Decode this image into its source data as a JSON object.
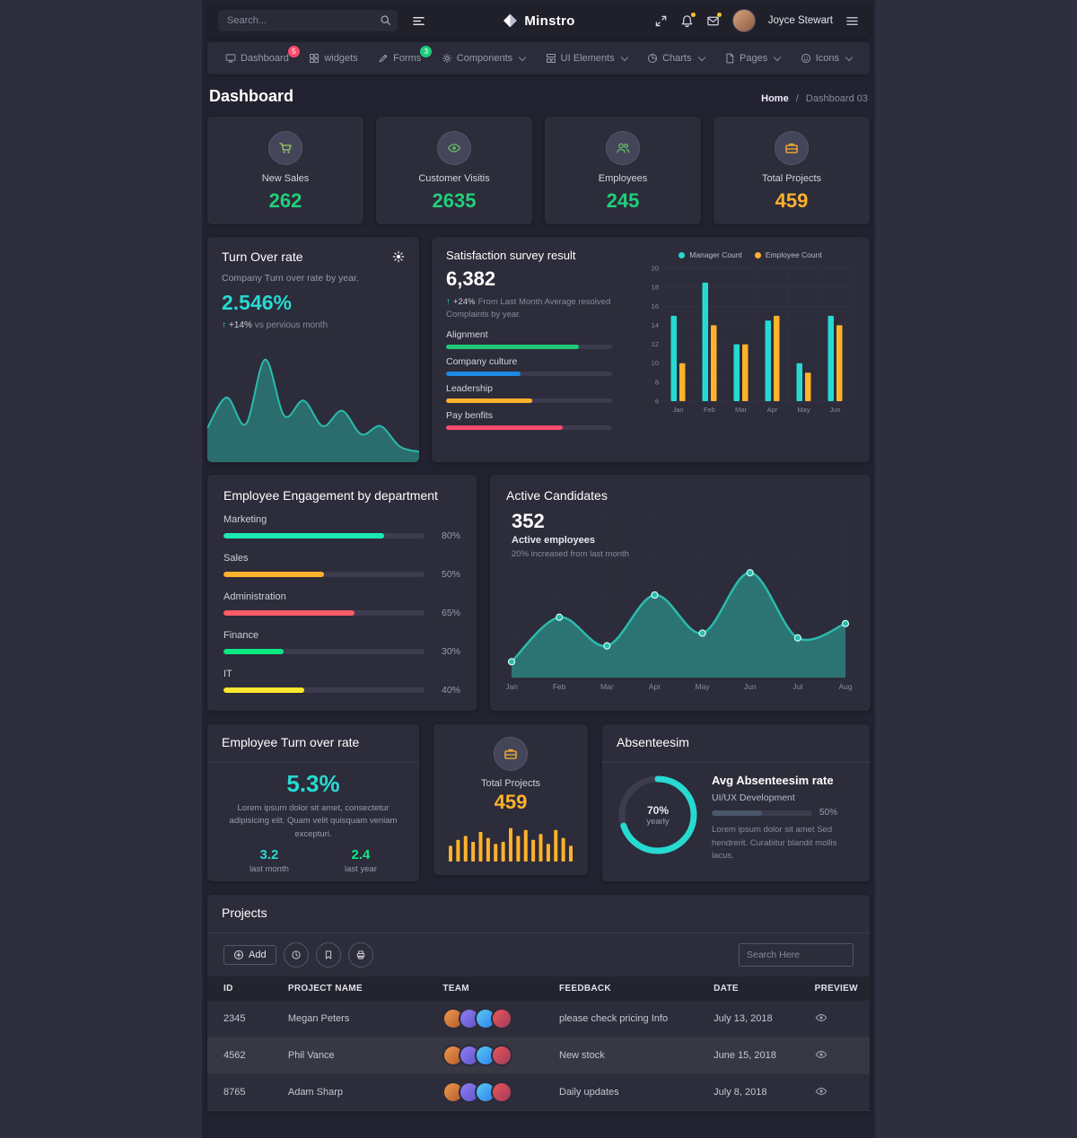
{
  "topbar": {
    "search_placeholder": "Search...",
    "brand": "Minstro",
    "user_name": "Joyce Stewart",
    "icons": [
      "search-icon",
      "list-icon",
      "expand-icon",
      "bell-icon",
      "mail-icon",
      "menu-icon"
    ]
  },
  "nav": {
    "items": [
      {
        "id": "dashboard",
        "label": "Dashboard",
        "icon": "monitor-icon",
        "badge": "5",
        "badge_color": "#fc4b6c",
        "dropdown": false,
        "active": true
      },
      {
        "id": "widgets",
        "label": "widgets",
        "icon": "widgets-icon",
        "dropdown": false
      },
      {
        "id": "forms",
        "label": "Forms",
        "icon": "forms-icon",
        "badge": "3",
        "badge_color": "#1ecb7b",
        "dropdown": false
      },
      {
        "id": "components",
        "label": "Components",
        "icon": "components-icon",
        "dropdown": true
      },
      {
        "id": "ui-elements",
        "label": "UI Elements",
        "icon": "ui-elements-icon",
        "dropdown": true
      },
      {
        "id": "charts",
        "label": "Charts",
        "icon": "charts-icon",
        "dropdown": true
      },
      {
        "id": "pages",
        "label": "Pages",
        "icon": "pages-icon",
        "dropdown": true
      },
      {
        "id": "icons",
        "label": "Icons",
        "icon": "icons-icon",
        "dropdown": true
      }
    ]
  },
  "page": {
    "title": "Dashboard",
    "breadcrumb_home": "Home",
    "breadcrumb_sep": "/",
    "breadcrumb_current": "Dashboard 03"
  },
  "stats": [
    {
      "id": "new-sales",
      "label": "New Sales",
      "value": "262",
      "value_color": "#21d07a",
      "icon": "cart-icon",
      "icon_color": "#9ccc65"
    },
    {
      "id": "customer-visits",
      "label": "Customer Visitis",
      "value": "2635",
      "value_color": "#21d07a",
      "icon": "eye-icon",
      "icon_color": "#66bb6a"
    },
    {
      "id": "employees",
      "label": "Employees",
      "value": "245",
      "value_color": "#21d07a",
      "icon": "people-icon",
      "icon_color": "#66bb6a"
    },
    {
      "id": "total-projects",
      "label": "Total Projects",
      "value": "459",
      "value_color": "#ffb22b",
      "icon": "briefcase-icon",
      "icon_color": "#ffb22b"
    }
  ],
  "turnover": {
    "title": "Turn Over rate",
    "subtitle": "Company Turn over rate by year.",
    "value": "2.546%",
    "delta": "+14%",
    "delta_note": "vs pervious month",
    "chart": {
      "type": "area",
      "color": "#2bbbad",
      "values": [
        28,
        58,
        32,
        95,
        40,
        55,
        30,
        45,
        22,
        30,
        10,
        5
      ]
    }
  },
  "satisfaction": {
    "title": "Satisfaction survey result",
    "value": "6,382",
    "delta": "+24%",
    "note": "From Last Month Average resolved Complaints by year.",
    "progress": [
      {
        "label": "Alignment",
        "pct": 80,
        "color": "#21c87a"
      },
      {
        "label": "Company culture",
        "pct": 45,
        "color": "#1e88e5"
      },
      {
        "label": "Leadership",
        "pct": 52,
        "color": "#ffb22b"
      },
      {
        "label": "Pay benfits",
        "pct": 70,
        "color": "#fc4b6c"
      }
    ],
    "chart": {
      "type": "bar",
      "categories": [
        "Jan",
        "Feb",
        "Mar",
        "Apr",
        "May",
        "Jun"
      ],
      "series": [
        {
          "name": "Manager Count",
          "color": "#26dad2",
          "values": [
            15,
            18.5,
            12,
            14.5,
            10,
            15
          ]
        },
        {
          "name": "Employee Count",
          "color": "#ffb22b",
          "values": [
            10,
            14,
            12,
            15,
            9,
            14
          ]
        }
      ],
      "y_ticks": [
        20,
        18,
        16,
        14,
        12,
        10,
        8,
        6
      ],
      "y_min": 6,
      "y_max": 20
    }
  },
  "engagement": {
    "title": "Employee Engagement by department",
    "rows": [
      {
        "label": "Marketing",
        "pct": 80,
        "pct_label": "80%",
        "color": "#1de9b6"
      },
      {
        "label": "Sales",
        "pct": 50,
        "pct_label": "50%",
        "color": "#ffb22b"
      },
      {
        "label": "Administration",
        "pct": 65,
        "pct_label": "65%",
        "color": "#fc5c65"
      },
      {
        "label": "Finance",
        "pct": 30,
        "pct_label": "30%",
        "color": "#0be881"
      },
      {
        "label": "IT",
        "pct": 40,
        "pct_label": "40%",
        "color": "#fde62f"
      }
    ]
  },
  "candidates": {
    "title": "Active Candidates",
    "value": "352",
    "label": "Active employees",
    "note": "20% increased from last month",
    "chart": {
      "type": "line",
      "color": "#2bbbad",
      "categories": [
        "Jan",
        "Feb",
        "Mar",
        "Apr",
        "May",
        "Jun",
        "Jul",
        "Aug"
      ],
      "values": [
        10,
        38,
        20,
        52,
        28,
        66,
        25,
        34
      ]
    }
  },
  "emp_turnover": {
    "title": "Employee Turn over rate",
    "value": "5.3%",
    "text": "Lorem ipsum dolor sit amet, consectetur adipisicing elit. Quam velit quisquam veniam excepturi.",
    "stats": [
      {
        "value": "3.2",
        "label": "last month",
        "color": "#26dad2"
      },
      {
        "value": "2.4",
        "label": "last year",
        "color": "#0be881"
      }
    ]
  },
  "total_projects": {
    "label": "Total Projects",
    "value": "459",
    "icon": "briefcase-icon",
    "icon_color": "#ffb22b",
    "chart": {
      "type": "bar",
      "color": "#ffb22b",
      "values": [
        40,
        55,
        65,
        50,
        75,
        60,
        45,
        50,
        85,
        65,
        80,
        55,
        70,
        45,
        80,
        60,
        40
      ]
    }
  },
  "absenteeism": {
    "title": "Absenteesim",
    "donut": {
      "pct": 70,
      "label": "70%",
      "sublabel": "yearly",
      "color": "#26dad2"
    },
    "heading": "Avg Absenteesim rate",
    "subheading": "UI/UX Development",
    "progress_pct": 50,
    "progress_label": "50%",
    "text": "Lorem ipsum dolor sit amet Sed hendrerit. Curabitur blandit mollis lacus."
  },
  "projects": {
    "title": "Projects",
    "add_label": "Add",
    "toolbar_buttons": [
      {
        "name": "history-button",
        "icon": "clock-icon"
      },
      {
        "name": "bookmark-button",
        "icon": "bookmark-icon"
      },
      {
        "name": "print-button",
        "icon": "printer-icon"
      }
    ],
    "search_placeholder": "Search Here",
    "columns": [
      "ID",
      "PROJECT NAME",
      "TEAM",
      "FEEDBACK",
      "DATE",
      "PREVIEW"
    ],
    "rows": [
      {
        "id": "2345",
        "name": "Megan Peters",
        "team_count": 4,
        "feedback": "please check pricing Info",
        "date": "July 13, 2018",
        "highlight": false
      },
      {
        "id": "4562",
        "name": "Phil Vance",
        "team_count": 4,
        "feedback": "New stock",
        "date": "June 15, 2018",
        "highlight": true
      },
      {
        "id": "8765",
        "name": "Adam Sharp",
        "team_count": 4,
        "feedback": "Daily updates",
        "date": "July 8, 2018",
        "highlight": false
      }
    ]
  }
}
